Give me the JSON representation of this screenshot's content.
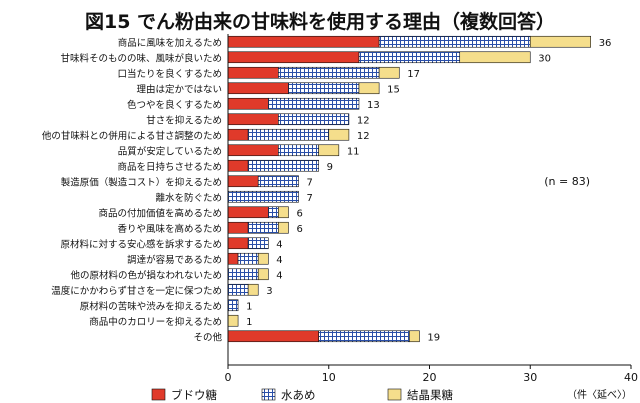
{
  "chart_data": {
    "type": "bar",
    "orientation": "horizontal",
    "stacked": true,
    "title": "図15 でん粉由来の甘味料を使用する理由（複数回答）",
    "sample_note": "(n = 83)",
    "x_unit_label": "（件〈延べ〉）",
    "xlim": [
      0,
      40
    ],
    "x_ticks": [
      "0",
      "10",
      "20",
      "30",
      "40"
    ],
    "grid": false,
    "legend_position": "bottom",
    "categories": [
      "商品に風味を加えるため",
      "甘味料そのものの味、風味が良いため",
      "口当たりを良くするため",
      "理由は定かではない",
      "色つやを良くするため",
      "甘さを抑えるため",
      "他の甘味料との併用による甘さ調整のため",
      "品質が安定しているため",
      "商品を日持ちさせるため",
      "製造原価（製造コスト）を抑えるため",
      "離水を防ぐため",
      "商品の付加価値を高めるため",
      "香りや風味を高めるため",
      "原材料に対する安心感を訴求するため",
      "調達が容易であるため",
      "他の原材料の色が損なわれないため",
      "温度にかかわらず甘さを一定に保つため",
      "原材料の苦味や渋みを抑えるため",
      "商品中のカロリーを抑えるため",
      "その他"
    ],
    "series": [
      {
        "name": "ブドウ糖",
        "color": "#e03a2a",
        "pattern": "solid",
        "values": [
          15,
          13,
          5,
          6,
          4,
          5,
          2,
          5,
          2,
          3,
          0,
          4,
          2,
          2,
          1,
          0,
          0,
          0,
          0,
          9
        ]
      },
      {
        "name": "水あめ",
        "color": "#2a4fa8",
        "pattern": "grid",
        "values": [
          15,
          10,
          10,
          7,
          9,
          7,
          8,
          4,
          7,
          4,
          7,
          1,
          3,
          2,
          2,
          3,
          2,
          1,
          0,
          9
        ]
      },
      {
        "name": "結晶果糖",
        "color": "#f5de8c",
        "pattern": "solid",
        "values": [
          6,
          7,
          2,
          2,
          0,
          0,
          2,
          2,
          0,
          0,
          0,
          1,
          1,
          0,
          1,
          1,
          1,
          0,
          1,
          1
        ]
      }
    ],
    "totals": [
      36,
      30,
      17,
      15,
      13,
      12,
      12,
      11,
      9,
      7,
      7,
      6,
      6,
      4,
      4,
      4,
      3,
      1,
      1,
      19
    ]
  }
}
